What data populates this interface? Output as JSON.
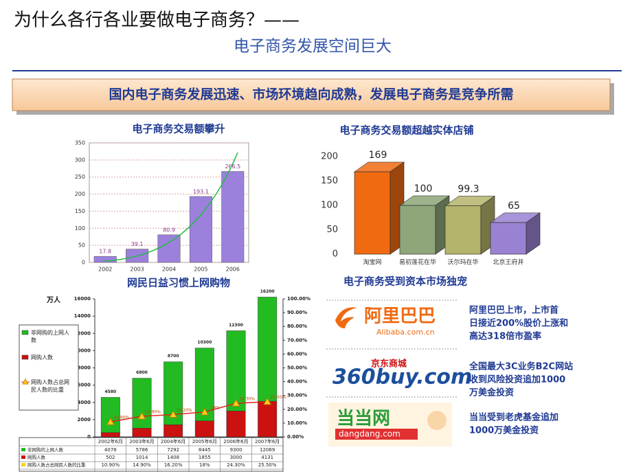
{
  "header": {
    "title": "为什么各行各业要做电子商务？——",
    "subtitle": "电子商务发展空间巨大",
    "banner": "国内电子商务发展迅速、市场环境趋向成熟，发展电子商务是竞争所需"
  },
  "chart_data": [
    {
      "type": "bar",
      "title": "电子商务交易额攀升",
      "categories": [
        "2002",
        "2003",
        "2004",
        "2005",
        "2006"
      ],
      "values": [
        17.8,
        39.1,
        80.9,
        193.1,
        266.5
      ],
      "color": "#9b80dc",
      "ylim": [
        0,
        350
      ],
      "yticks": [
        0,
        50,
        100,
        150,
        200,
        250,
        300,
        350
      ],
      "grid": true
    },
    {
      "type": "bar3d",
      "title": "电子商务交易额超越实体店铺",
      "categories": [
        "淘宝网",
        "易初莲花在华",
        "沃尔玛在华",
        "北京王府井"
      ],
      "values": [
        169,
        100,
        99.3,
        65
      ],
      "colors": [
        "#f06a12",
        "#8ea67a",
        "#b4b46c",
        "#9a82d2"
      ],
      "ylim": [
        0,
        200
      ],
      "yticks": [
        0,
        50,
        100,
        150,
        200
      ]
    },
    {
      "type": "stacked_bar_line",
      "title": "网民日益习惯上网购物",
      "ylabel": "万人",
      "categories": [
        "2002年6月",
        "2003年6月",
        "2004年6月",
        "2005年6月",
        "2006年6月",
        "2007年6月"
      ],
      "series": [
        {
          "name": "非网购的上网人数",
          "color": "#22bb22",
          "values": [
            4078,
            5786,
            7292,
            8445,
            9300,
            12069
          ]
        },
        {
          "name": "网购人数",
          "color": "#cc1111",
          "values": [
            502,
            1014,
            1408,
            1855,
            3000,
            4131
          ]
        },
        {
          "name": "网购人数占总网民人数的比重",
          "color": "#e02020",
          "axis": "y2",
          "values": [
            10.9,
            14.9,
            16.2,
            18,
            24.3,
            25.5
          ],
          "value_labels": [
            "10.90%",
            "14.90%",
            "16.20%",
            "18%",
            "24.30%",
            "25.50%"
          ]
        }
      ],
      "totals": [
        4580,
        6800,
        8700,
        10300,
        12300,
        16200
      ],
      "ylim": [
        0,
        16000
      ],
      "yticks": [
        0,
        2000,
        4000,
        6000,
        8000,
        10000,
        12000,
        14000,
        16000
      ],
      "y2lim": [
        0,
        100
      ],
      "y2ticks": [
        {
          "value": 0,
          "label": "0.00%"
        },
        {
          "value": 10,
          "label": "10.00%"
        },
        {
          "value": 20,
          "label": "20.00%"
        },
        {
          "value": 30,
          "label": "30.00%"
        },
        {
          "value": 40,
          "label": "40.00%"
        },
        {
          "value": 50,
          "label": "50.00%"
        },
        {
          "value": 60,
          "label": "60.00%"
        },
        {
          "value": 70,
          "label": "70.00%"
        },
        {
          "value": 80,
          "label": "80.00%"
        },
        {
          "value": 90,
          "label": "90.00%"
        },
        {
          "value": 100,
          "label": "100.00%"
        }
      ]
    }
  ],
  "capital": {
    "title": "电子商务受到资本市场独宠",
    "items": [
      {
        "logo": [
          "阿里巴巴",
          "Alibaba.com.cn"
        ],
        "lines": [
          "阿里巴巴上市，上市首",
          "日接近200%股价上涨和",
          "高达318倍市盈率"
        ]
      },
      {
        "logo": [
          "京东商城",
          "360buy.com"
        ],
        "lines": [
          "全国最大3C业务B2C网站",
          "收到风险投资追加1000",
          "万美金投资"
        ]
      },
      {
        "logo": [
          "当当网",
          "dangdang.com"
        ],
        "lines": [
          "当当受到老虎基金追加",
          "1000万美金投资"
        ]
      }
    ]
  }
}
